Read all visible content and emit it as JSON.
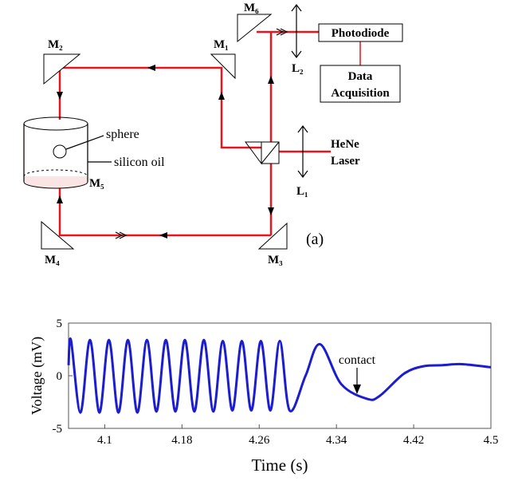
{
  "diagram": {
    "mirrors": [
      "M₁",
      "M₂",
      "M₃",
      "M₄",
      "M₅",
      "M₆"
    ],
    "lenses": [
      "L₁",
      "L₂"
    ],
    "photodiode": "Photodiode",
    "daq": [
      "Data",
      "Acquisition"
    ],
    "sphere": "sphere",
    "oil": "silicon oil",
    "laser": [
      "HeNe",
      "Laser"
    ],
    "panel": "(a)"
  },
  "chart_data": {
    "type": "line",
    "xlabel": "Time (s)",
    "ylabel": "Voltage (mV)",
    "annotation": "contact",
    "xlim": [
      4.0625,
      4.5
    ],
    "ylim": [
      -5,
      5
    ],
    "xticks": [
      4.1,
      4.18,
      4.26,
      4.34,
      4.42,
      4.5
    ],
    "yticks": [
      -5,
      0,
      5
    ],
    "x": [
      4.0625,
      4.065,
      4.0748,
      4.0847,
      4.0945,
      4.1043,
      4.1142,
      4.124,
      4.1338,
      4.1437,
      4.1535,
      4.1633,
      4.1732,
      4.183,
      4.1928,
      4.2027,
      4.2125,
      4.2223,
      4.2322,
      4.242,
      4.2518,
      4.2617,
      4.2715,
      4.2813,
      4.2915,
      4.308,
      4.323,
      4.345,
      4.372,
      4.385,
      4.41,
      4.43,
      4.45,
      4.47,
      4.5
    ],
    "series": [
      {
        "name": "Voltage",
        "color": "#1c1cd0",
        "values": [
          1.0,
          3.4,
          -3.5,
          3.4,
          -3.5,
          3.4,
          -3.5,
          3.4,
          -3.5,
          3.4,
          -3.4,
          3.4,
          -3.4,
          3.4,
          -3.4,
          3.4,
          -3.4,
          3.3,
          -3.3,
          3.3,
          -3.3,
          3.3,
          -3.3,
          3.3,
          -3.3,
          0.0,
          3.0,
          -0.8,
          -2.2,
          -1.9,
          0.2,
          0.9,
          1.0,
          1.1,
          0.8
        ]
      }
    ]
  }
}
